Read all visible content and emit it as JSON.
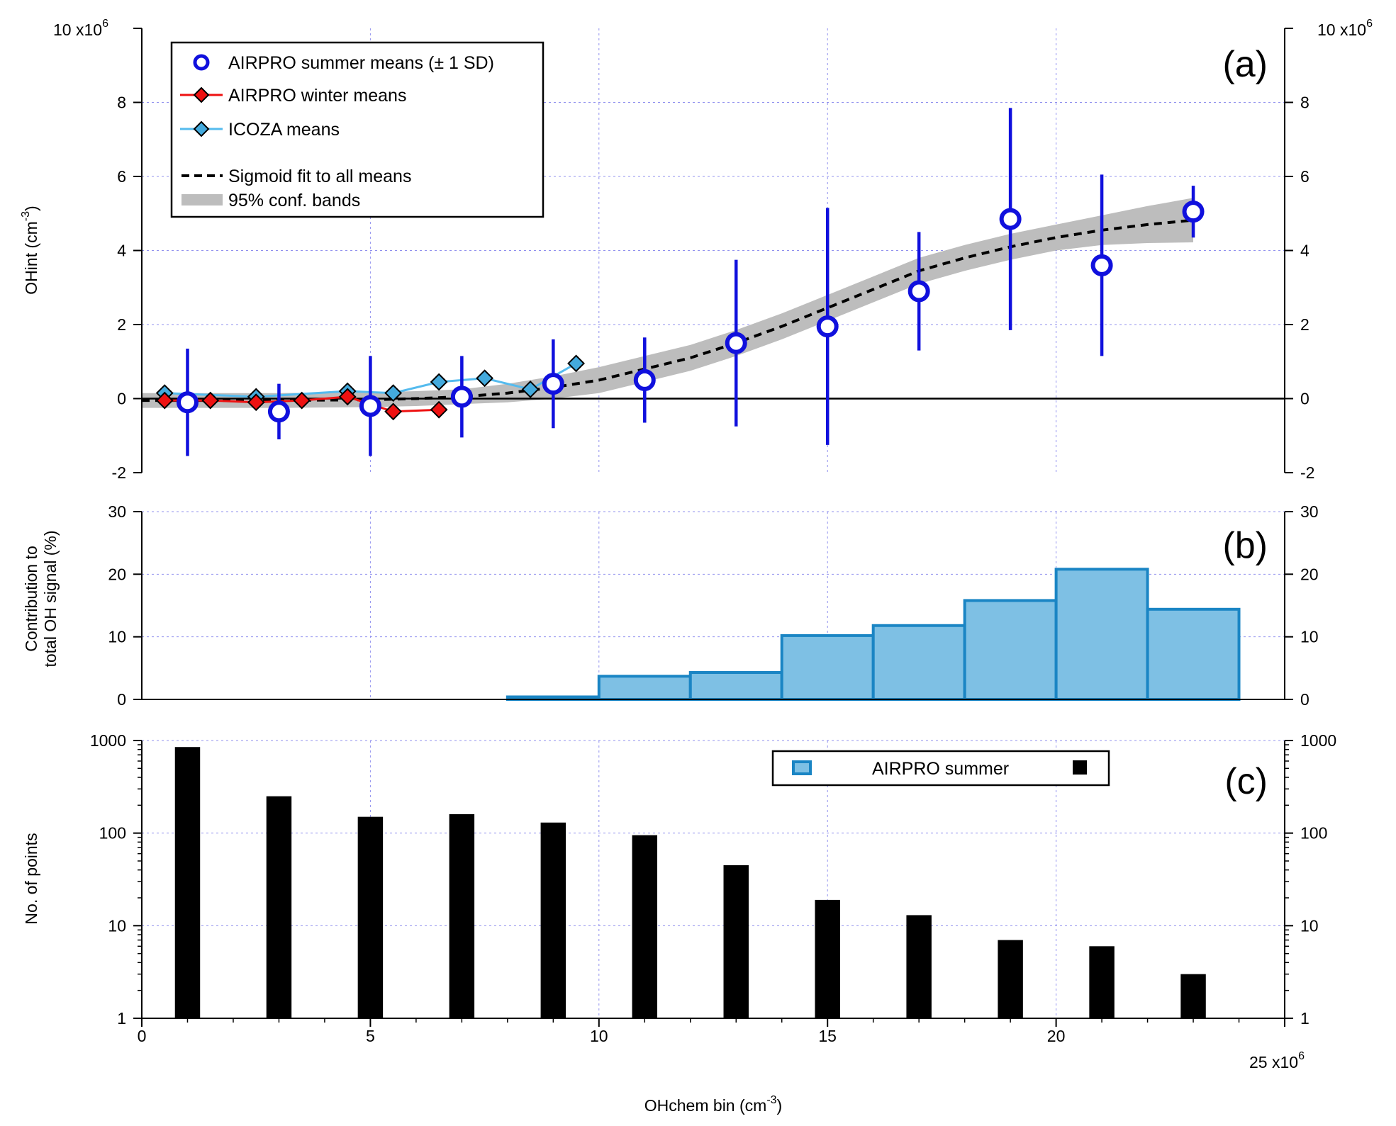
{
  "x_axis": {
    "label_main": "OHchem bin (cm",
    "label_exp": "-3",
    "label_close": ")",
    "ticks": [
      "0",
      "5",
      "10",
      "15",
      "20",
      "25"
    ],
    "multiplier_base": "x10",
    "multiplier_exp": "6"
  },
  "panel_a": {
    "tag": "(a)",
    "ylabel_main": "OHint (cm",
    "ylabel_exp": "-3",
    "ylabel_close": ")",
    "multiplier_base": "10 x10",
    "multiplier_exp": "6",
    "yticks": [
      "-2",
      "0",
      "2",
      "4",
      "6",
      "8"
    ],
    "legend": {
      "summer": "AIRPRO summer means (± 1 SD)",
      "winter": "AIRPRO winter means",
      "icoza": "ICOZA means",
      "fit": "Sigmoid fit to all means",
      "band": "95% conf. bands"
    }
  },
  "panel_b": {
    "tag": "(b)",
    "ylabel_line1": "Contribution to",
    "ylabel_line2": "total OH signal (%)",
    "yticks": [
      "0",
      "10",
      "20",
      "30"
    ]
  },
  "panel_c": {
    "tag": "(c)",
    "ylabel": "No. of points",
    "yticks": [
      "1",
      "10",
      "100",
      "1000"
    ],
    "legend_label": "AIRPRO summer"
  },
  "colors": {
    "summer": "#1010dd",
    "winter": "#ee1111",
    "icoza_line": "#55bbee",
    "icoza_fill": "#44aadd",
    "band": "#bdbdbd",
    "hist_fill": "#7ec0e4",
    "hist_edge": "#1a85c4",
    "grid": "#9090ee",
    "counts": "#000000"
  },
  "chart_data": [
    {
      "type": "scatter",
      "panel": "a",
      "x_unit": "x10^6 cm^-3",
      "y_unit": "x10^6 cm^-3",
      "xlim": [
        0,
        25
      ],
      "ylim": [
        -2,
        10
      ],
      "series": [
        {
          "name": "AIRPRO summer means (± 1 SD)",
          "x": [
            1,
            3,
            5,
            7,
            9,
            11,
            13,
            15,
            17,
            19,
            21,
            23
          ],
          "y": [
            -0.1,
            -0.35,
            -0.2,
            0.05,
            0.4,
            0.5,
            1.5,
            1.95,
            2.9,
            4.85,
            3.6,
            5.05
          ],
          "sd": [
            1.45,
            0.75,
            1.35,
            1.1,
            1.2,
            1.15,
            2.25,
            3.2,
            1.6,
            3.0,
            2.45,
            0.7
          ]
        },
        {
          "name": "AIRPRO winter means",
          "x": [
            0.5,
            1.5,
            2.5,
            3.5,
            4.5,
            5.5,
            6.5
          ],
          "y": [
            -0.05,
            -0.05,
            -0.1,
            -0.05,
            0.05,
            -0.35,
            -0.3
          ]
        },
        {
          "name": "ICOZA means",
          "x": [
            0.5,
            2.5,
            4.5,
            5.5,
            6.5,
            7.5,
            8.5,
            9.5
          ],
          "y": [
            0.15,
            0.05,
            0.2,
            0.15,
            0.45,
            0.55,
            0.25,
            0.95
          ]
        },
        {
          "name": "Sigmoid fit to all means",
          "x": [
            0,
            1,
            2,
            3,
            4,
            5,
            6,
            7,
            8,
            9,
            10,
            11,
            12,
            13,
            14,
            15,
            16,
            17,
            18,
            19,
            20,
            21,
            22,
            23
          ],
          "y": [
            -0.05,
            -0.05,
            -0.05,
            -0.05,
            -0.04,
            -0.03,
            0.0,
            0.05,
            0.15,
            0.3,
            0.5,
            0.8,
            1.1,
            1.5,
            1.95,
            2.45,
            2.95,
            3.45,
            3.8,
            4.1,
            4.35,
            4.55,
            4.7,
            4.82
          ],
          "band_half_width": [
            0.2,
            0.2,
            0.2,
            0.2,
            0.2,
            0.2,
            0.2,
            0.2,
            0.25,
            0.3,
            0.35,
            0.35,
            0.35,
            0.35,
            0.35,
            0.35,
            0.35,
            0.35,
            0.35,
            0.35,
            0.35,
            0.4,
            0.5,
            0.6
          ]
        }
      ]
    },
    {
      "type": "bar",
      "panel": "b",
      "bin_edges": [
        8,
        10,
        12,
        14,
        16,
        18,
        20,
        22,
        24
      ],
      "values": [
        0.4,
        3.7,
        4.3,
        10.2,
        11.8,
        15.8,
        20.8,
        14.4
      ],
      "ylim": [
        0,
        30
      ]
    },
    {
      "type": "bar",
      "panel": "c",
      "log_scale_y": true,
      "x": [
        1,
        3,
        5,
        7,
        9,
        11,
        13,
        15,
        17,
        19,
        21,
        23
      ],
      "values": [
        850,
        250,
        150,
        160,
        130,
        95,
        45,
        19,
        13,
        7,
        6,
        3
      ],
      "ylim": [
        1,
        1000
      ]
    }
  ]
}
